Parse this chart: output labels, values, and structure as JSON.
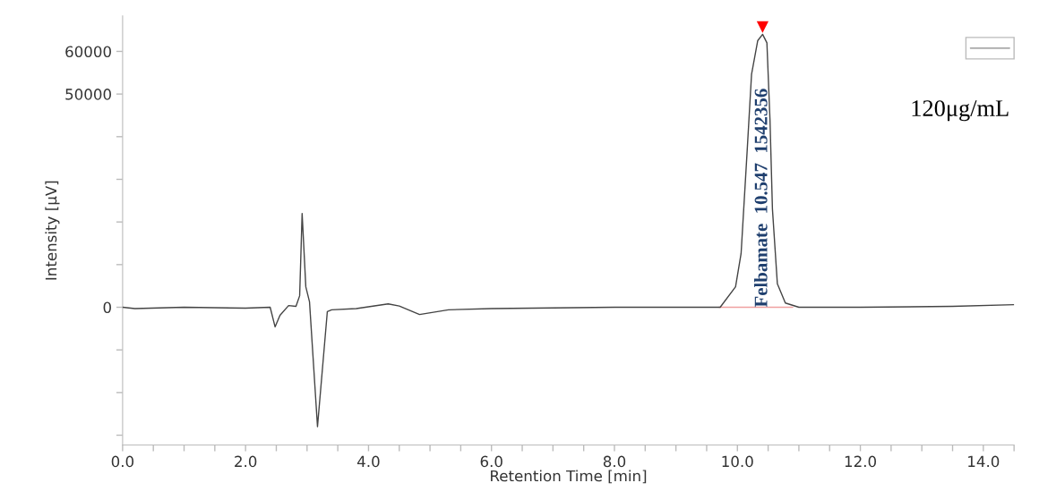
{
  "chart_data": {
    "type": "line",
    "xlabel": "Retention Time [min]",
    "ylabel": "Intensity [µV]",
    "x": [
      0,
      0.2,
      1.0,
      2.0,
      2.4,
      2.48,
      2.56,
      2.7,
      2.82,
      2.88,
      2.92,
      2.98,
      3.04,
      3.17,
      3.33,
      3.4,
      3.8,
      4.32,
      4.5,
      4.83,
      5.3,
      6.0,
      8.0,
      9.5,
      9.72,
      9.97,
      10.06,
      10.16,
      10.23,
      10.33,
      10.41,
      10.48,
      10.53,
      10.57,
      10.65,
      10.78,
      11.0,
      12.0,
      13.5,
      14.5
    ],
    "series": [
      {
        "color": "#444444",
        "values": [
          0,
          -300,
          0,
          -200,
          0,
          -4600,
          -1900,
          400,
          200,
          2700,
          22000,
          4800,
          1300,
          -28000,
          -1000,
          -600,
          -300,
          800,
          300,
          -1700,
          -600,
          -300,
          0,
          0,
          0,
          4800,
          12600,
          37000,
          54600,
          62500,
          64000,
          62000,
          44000,
          23000,
          5500,
          1000,
          0,
          0,
          200,
          600
        ]
      },
      {
        "type": "line",
        "color": "#f0a0a0",
        "x": [
          9.7,
          10.9
        ],
        "values": [
          0,
          0
        ]
      },
      {
        "type": "scatter",
        "color": "#ff0000",
        "marker": "triangle",
        "x": [
          10.41
        ],
        "values": [
          65700
        ]
      }
    ],
    "xlim": [
      0,
      14.5
    ],
    "ylim": [
      -32300,
      68300
    ],
    "xticks": [
      {
        "value": 0,
        "label": "0.0"
      },
      {
        "value": 0.5,
        "label": null
      },
      {
        "value": 1,
        "label": null
      },
      {
        "value": 1.5,
        "label": null
      },
      {
        "value": 2,
        "label": "2.0"
      },
      {
        "value": 2.5,
        "label": null
      },
      {
        "value": 3,
        "label": null
      },
      {
        "value": 3.5,
        "label": null
      },
      {
        "value": 4,
        "label": "4.0"
      },
      {
        "value": 4.5,
        "label": null
      },
      {
        "value": 5,
        "label": null
      },
      {
        "value": 5.5,
        "label": null
      },
      {
        "value": 6,
        "label": "6.0"
      },
      {
        "value": 6.5,
        "label": null
      },
      {
        "value": 7,
        "label": null
      },
      {
        "value": 7.5,
        "label": null
      },
      {
        "value": 8,
        "label": "8.0"
      },
      {
        "value": 8.5,
        "label": null
      },
      {
        "value": 9,
        "label": null
      },
      {
        "value": 9.5,
        "label": null
      },
      {
        "value": 10,
        "label": "10.0"
      },
      {
        "value": 10.5,
        "label": null
      },
      {
        "value": 11,
        "label": null
      },
      {
        "value": 11.5,
        "label": null
      },
      {
        "value": 12,
        "label": "12.0"
      },
      {
        "value": 12.5,
        "label": null
      },
      {
        "value": 13,
        "label": null
      },
      {
        "value": 13.5,
        "label": null
      },
      {
        "value": 14,
        "label": "14.0"
      },
      {
        "value": 14.5,
        "label": null
      }
    ],
    "yticks": [
      {
        "value": -30000,
        "label": null
      },
      {
        "value": -20000,
        "label": null
      },
      {
        "value": -10000,
        "label": null
      },
      0,
      {
        "value": 10000,
        "label": null
      },
      {
        "value": 20000,
        "label": null
      },
      {
        "value": 30000,
        "label": null
      },
      {
        "value": 40000,
        "label": null
      },
      50000,
      60000
    ],
    "annotations": [
      {
        "text": "Felbamate  10.547  1542356",
        "x": 10.41,
        "y": 0
      },
      "120μg/mL"
    ],
    "grid": false,
    "marker": "none"
  }
}
